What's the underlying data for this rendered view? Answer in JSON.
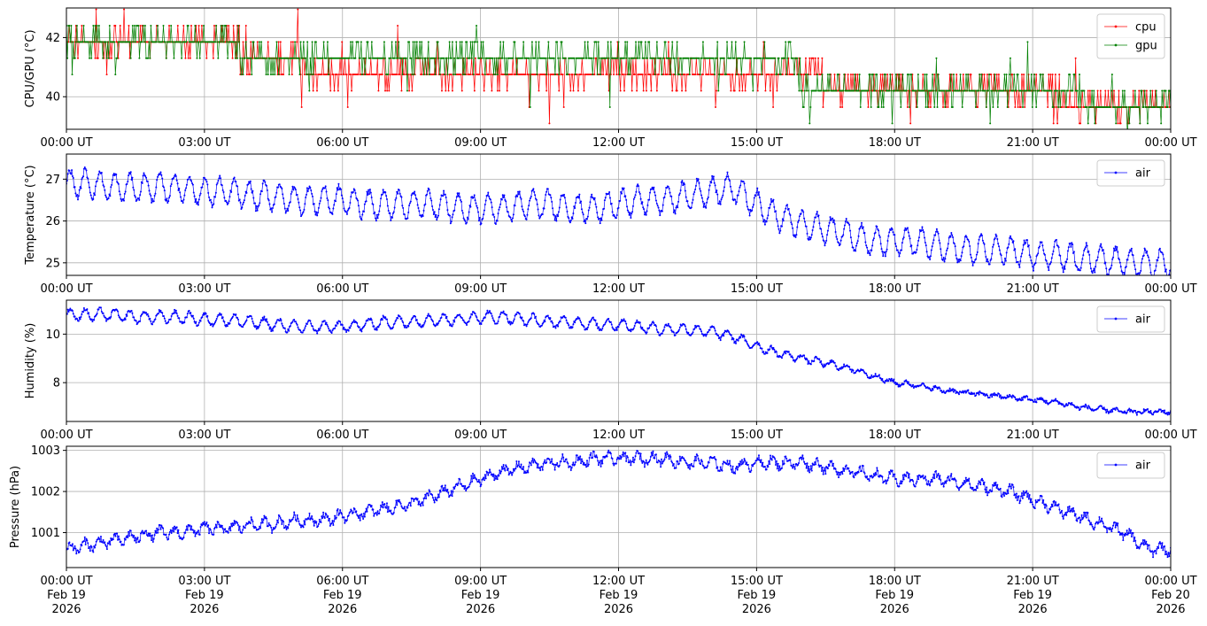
{
  "colors": {
    "cpu": "#ff0000",
    "gpu": "#008000",
    "air": "#0000ff",
    "grid": "#b0b0b0"
  },
  "chart_data": [
    {
      "type": "line",
      "ylabel": "CPU/GPU (°C)",
      "ylim": [
        38.9,
        43.0
      ],
      "yticks": [
        40,
        42
      ],
      "x_range": [
        "2026-02-19 00:00 UT",
        "2026-02-20 00:00 UT"
      ],
      "xticks": [
        "00:00 UT",
        "03:00 UT",
        "06:00 UT",
        "09:00 UT",
        "12:00 UT",
        "15:00 UT",
        "18:00 UT",
        "21:00 UT",
        "00:00 UT"
      ],
      "grid": true,
      "legend": "upper-right",
      "series": [
        {
          "name": "cpu",
          "color": "#ff0000",
          "sample_minutes": 10,
          "values": [
            41.8,
            41.8,
            41.8,
            41.8,
            41.8,
            41.8,
            41.8,
            41.8,
            41.8,
            41.8,
            41.8,
            41.8,
            41.8,
            41.8,
            41.8,
            41.8,
            41.8,
            41.8,
            41.8,
            41.8,
            41.8,
            41.8,
            41.8,
            41.3,
            41.3,
            41.3,
            41.3,
            41.3,
            41.3,
            41.3,
            41.3,
            40.7,
            40.7,
            40.7,
            40.7,
            40.7,
            40.7,
            40.7,
            40.7,
            40.7,
            40.7,
            40.7,
            40.7,
            40.7,
            40.7,
            40.7,
            40.7,
            40.7,
            40.7,
            40.7,
            40.7,
            40.7,
            40.7,
            40.7,
            40.7,
            40.7,
            40.7,
            40.7,
            40.7,
            40.7,
            40.7,
            40.7,
            40.7,
            40.7,
            40.7,
            40.7,
            40.7,
            40.7,
            40.7,
            40.7,
            40.7,
            40.7,
            40.7,
            40.7,
            40.7,
            40.7,
            40.7,
            40.7,
            40.7,
            40.7,
            40.7,
            40.7,
            40.7,
            40.7,
            40.7,
            40.7,
            40.7,
            40.7,
            40.7,
            40.7,
            40.7,
            40.7,
            40.7,
            40.7,
            40.7,
            40.7,
            40.7,
            40.7,
            40.7,
            40.2,
            40.2,
            40.2,
            40.2,
            40.2,
            40.2,
            40.2,
            40.2,
            40.2,
            40.2,
            40.2,
            40.2,
            40.2,
            40.2,
            40.2,
            40.2,
            40.2,
            40.2,
            40.2,
            40.2,
            40.2,
            40.2,
            40.2,
            40.2,
            40.2,
            40.2,
            40.2,
            40.2,
            40.2,
            40.2,
            39.7,
            39.7,
            39.7,
            39.7,
            39.7,
            39.7,
            39.7,
            39.7,
            39.7,
            39.7,
            39.7,
            39.7,
            39.7,
            39.7,
            39.7,
            39.7,
            39.7,
            39.7
          ]
        },
        {
          "name": "gpu",
          "color": "#008000",
          "sample_minutes": 10,
          "values": [
            41.8,
            41.8,
            41.8,
            41.8,
            41.8,
            41.8,
            41.8,
            41.8,
            41.8,
            41.8,
            41.8,
            41.8,
            41.8,
            41.8,
            41.8,
            41.8,
            41.8,
            41.8,
            41.8,
            41.8,
            41.8,
            41.8,
            41.8,
            41.3,
            41.3,
            41.3,
            41.3,
            41.3,
            41.3,
            41.3,
            41.3,
            41.3,
            41.3,
            41.3,
            41.3,
            41.3,
            41.3,
            41.3,
            41.3,
            41.3,
            41.3,
            41.3,
            41.3,
            41.3,
            41.3,
            41.3,
            41.3,
            41.3,
            41.3,
            41.3,
            41.3,
            41.3,
            41.3,
            41.3,
            41.3,
            41.3,
            41.3,
            41.3,
            41.3,
            41.3,
            41.3,
            41.3,
            41.3,
            41.3,
            41.3,
            41.3,
            41.3,
            41.3,
            41.3,
            41.3,
            41.3,
            41.3,
            41.3,
            41.3,
            41.3,
            41.3,
            41.3,
            41.3,
            41.3,
            41.3,
            41.3,
            41.3,
            41.3,
            41.3,
            41.3,
            41.3,
            41.3,
            41.3,
            41.3,
            41.3,
            41.3,
            41.3,
            41.3,
            41.3,
            41.3,
            41.3,
            40.2,
            40.2,
            40.2,
            40.2,
            40.2,
            40.2,
            40.2,
            40.2,
            40.2,
            40.2,
            40.2,
            40.2,
            40.2,
            40.2,
            40.2,
            40.2,
            40.2,
            40.2,
            40.2,
            40.2,
            40.2,
            40.2,
            40.2,
            40.2,
            40.2,
            40.2,
            40.2,
            40.2,
            40.2,
            40.2,
            40.2,
            40.2,
            40.2,
            40.2,
            40.2,
            40.2,
            40.2,
            39.7,
            39.7,
            39.7,
            39.7,
            39.7,
            39.7,
            39.7,
            39.7,
            39.7,
            39.7,
            39.7,
            39.7,
            39.7,
            39.7,
            39.7
          ]
        }
      ]
    },
    {
      "type": "line",
      "ylabel": "Temperature (°C)",
      "ylim": [
        24.7,
        27.6
      ],
      "yticks": [
        25,
        26,
        27
      ],
      "x_range": [
        "2026-02-19 00:00 UT",
        "2026-02-20 00:00 UT"
      ],
      "xticks": [
        "00:00 UT",
        "03:00 UT",
        "06:00 UT",
        "09:00 UT",
        "12:00 UT",
        "15:00 UT",
        "18:00 UT",
        "21:00 UT",
        "00:00 UT"
      ],
      "grid": true,
      "legend": "upper-right",
      "series": [
        {
          "name": "air",
          "color": "#0000ff",
          "sample_minutes": 30,
          "values": [
            26.9,
            26.9,
            26.8,
            26.8,
            26.8,
            26.8,
            26.7,
            26.7,
            26.6,
            26.6,
            26.5,
            26.5,
            26.5,
            26.4,
            26.4,
            26.4,
            26.4,
            26.3,
            26.3,
            26.3,
            26.4,
            26.4,
            26.3,
            26.3,
            26.4,
            26.5,
            26.5,
            26.6,
            26.7,
            26.8,
            26.4,
            26.1,
            25.9,
            25.8,
            25.7,
            25.5,
            25.5,
            25.5,
            25.4,
            25.3,
            25.3,
            25.3,
            25.2,
            25.2,
            25.1,
            25.1,
            25.0,
            25.0
          ]
        }
      ]
    },
    {
      "type": "line",
      "ylabel": "Humidity (%)",
      "ylim": [
        6.4,
        11.4
      ],
      "yticks": [
        8,
        10
      ],
      "x_range": [
        "2026-02-19 00:00 UT",
        "2026-02-20 00:00 UT"
      ],
      "xticks": [
        "00:00 UT",
        "03:00 UT",
        "06:00 UT",
        "09:00 UT",
        "12:00 UT",
        "15:00 UT",
        "18:00 UT",
        "21:00 UT",
        "00:00 UT"
      ],
      "grid": true,
      "legend": "upper-right",
      "series": [
        {
          "name": "air",
          "color": "#0000ff",
          "sample_minutes": 30,
          "values": [
            10.8,
            10.8,
            10.8,
            10.7,
            10.7,
            10.7,
            10.6,
            10.6,
            10.5,
            10.4,
            10.3,
            10.3,
            10.3,
            10.4,
            10.5,
            10.5,
            10.6,
            10.6,
            10.7,
            10.7,
            10.6,
            10.5,
            10.5,
            10.4,
            10.4,
            10.3,
            10.2,
            10.2,
            10.1,
            9.9,
            9.5,
            9.2,
            9.0,
            8.8,
            8.6,
            8.3,
            8.0,
            7.9,
            7.7,
            7.6,
            7.5,
            7.4,
            7.3,
            7.2,
            7.0,
            6.9,
            6.8,
            6.8
          ]
        }
      ]
    },
    {
      "type": "line",
      "ylabel": "Pressure (hPa)",
      "ylim": [
        1000.15,
        1003.1
      ],
      "yticks": [
        1001,
        1002,
        1003
      ],
      "x_range": [
        "2026-02-19 00:00 UT",
        "2026-02-20 00:00 UT"
      ],
      "xticks": [
        "00:00 UT\nFeb 19\n2026",
        "03:00 UT\nFeb 19\n2026",
        "06:00 UT\nFeb 19\n2026",
        "09:00 UT\nFeb 19\n2026",
        "12:00 UT\nFeb 19\n2026",
        "15:00 UT\nFeb 19\n2026",
        "18:00 UT\nFeb 19\n2026",
        "21:00 UT\nFeb 19\n2026",
        "00:00 UT\nFeb 20\n2026"
      ],
      "grid": true,
      "legend": "upper-right",
      "series": [
        {
          "name": "air",
          "color": "#0000ff",
          "sample_minutes": 30,
          "values": [
            1000.6,
            1000.7,
            1000.8,
            1000.9,
            1001.0,
            1001.0,
            1001.1,
            1001.1,
            1001.2,
            1001.2,
            1001.3,
            1001.3,
            1001.4,
            1001.5,
            1001.6,
            1001.7,
            1001.9,
            1002.1,
            1002.3,
            1002.5,
            1002.6,
            1002.7,
            1002.7,
            1002.8,
            1002.8,
            1002.8,
            1002.8,
            1002.7,
            1002.7,
            1002.6,
            1002.7,
            1002.7,
            1002.7,
            1002.6,
            1002.5,
            1002.4,
            1002.3,
            1002.3,
            1002.3,
            1002.2,
            1002.1,
            1002.0,
            1001.8,
            1001.6,
            1001.4,
            1001.2,
            1001.0,
            1000.6
          ]
        }
      ]
    }
  ]
}
